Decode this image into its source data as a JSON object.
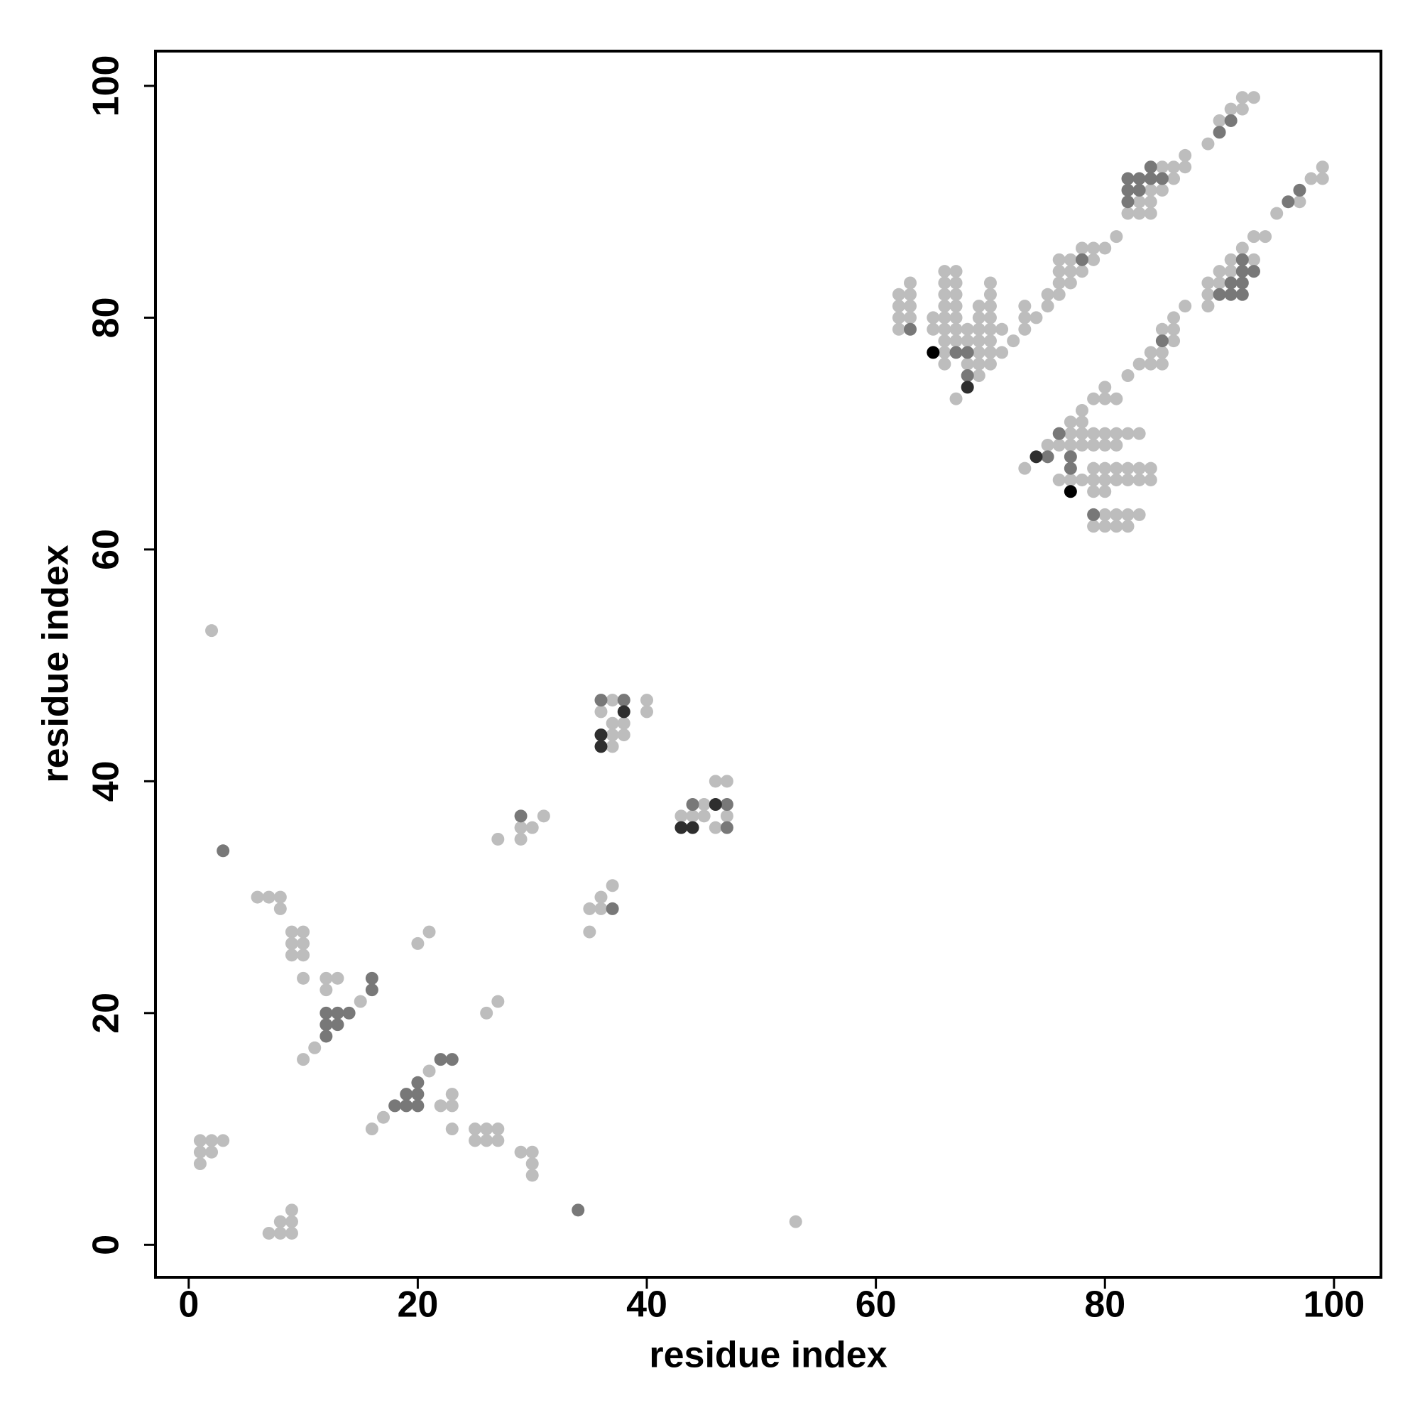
{
  "chart_data": {
    "type": "scatter",
    "xlabel": "residue index",
    "ylabel": "residue index",
    "xlim": [
      -2.9,
      104.1
    ],
    "ylim": [
      -2.8,
      103
    ],
    "xticks": [
      0,
      20,
      40,
      60,
      80,
      100
    ],
    "yticks": [
      0,
      20,
      40,
      60,
      80,
      100
    ],
    "series": [
      {
        "color": "#bdbdbd",
        "x": [
          1,
          1,
          2,
          1,
          2,
          3,
          2,
          6,
          7,
          8,
          8,
          9,
          10,
          9,
          10,
          9,
          10,
          10,
          12,
          13,
          12,
          15,
          11,
          10,
          7,
          8,
          9,
          8,
          9,
          9,
          16,
          17,
          21,
          22,
          23,
          23,
          23,
          25,
          26,
          27,
          25,
          26,
          27,
          29,
          30,
          30,
          30,
          53,
          20,
          21,
          26,
          27,
          27,
          29,
          30,
          29,
          31,
          35,
          35,
          36,
          36,
          37,
          37,
          36,
          37,
          38,
          37,
          38,
          37,
          40,
          40,
          43,
          44,
          45,
          45,
          46,
          47,
          46,
          47,
          62,
          62,
          62,
          62,
          63,
          63,
          63,
          63,
          65,
          65,
          66,
          66,
          66,
          66,
          66,
          66,
          66,
          66,
          66,
          67,
          67,
          67,
          67,
          67,
          67,
          67,
          67,
          68,
          68,
          68,
          69,
          69,
          69,
          69,
          69,
          69,
          69,
          70,
          70,
          70,
          70,
          70,
          70,
          70,
          70,
          71,
          71,
          72,
          73,
          73,
          73,
          74,
          75,
          75,
          76,
          76,
          76,
          76,
          77,
          77,
          77,
          78,
          78,
          79,
          79,
          80,
          81,
          82,
          83,
          83,
          84,
          84,
          84,
          85,
          85,
          86,
          86,
          87,
          87,
          89,
          90,
          91,
          92,
          92,
          93,
          73,
          75,
          76,
          76,
          77,
          77,
          77,
          77,
          78,
          78,
          78,
          78,
          78,
          79,
          79,
          79,
          79,
          79,
          79,
          79,
          80,
          80,
          80,
          80,
          80,
          80,
          80,
          80,
          80,
          81,
          81,
          81,
          81,
          81,
          81,
          81,
          82,
          82,
          82,
          82,
          82,
          82,
          83,
          83,
          83,
          83,
          83,
          84,
          84,
          84,
          84,
          85,
          85,
          85,
          86,
          86,
          86,
          87,
          89,
          89,
          89,
          90,
          90,
          91,
          91,
          92,
          93,
          93,
          94,
          95,
          97,
          98,
          99,
          99
        ],
        "y": [
          7,
          8,
          8,
          9,
          9,
          9,
          53,
          30,
          30,
          30,
          29,
          27,
          27,
          26,
          26,
          25,
          25,
          23,
          23,
          23,
          22,
          21,
          17,
          16,
          1,
          1,
          1,
          2,
          2,
          3,
          10,
          11,
          15,
          12,
          12,
          13,
          10,
          9,
          9,
          9,
          10,
          10,
          10,
          8,
          8,
          7,
          6,
          2,
          26,
          27,
          20,
          21,
          35,
          36,
          36,
          35,
          37,
          27,
          29,
          29,
          30,
          31,
          47,
          46,
          45,
          45,
          44,
          44,
          43,
          47,
          46,
          37,
          37,
          37,
          38,
          40,
          40,
          36,
          37,
          82,
          81,
          80,
          79,
          83,
          82,
          81,
          80,
          80,
          79,
          84,
          83,
          82,
          81,
          80,
          79,
          78,
          77,
          76,
          84,
          83,
          82,
          81,
          80,
          79,
          78,
          73,
          79,
          78,
          76,
          81,
          80,
          79,
          78,
          77,
          76,
          75,
          83,
          82,
          81,
          80,
          79,
          78,
          77,
          76,
          79,
          77,
          78,
          81,
          80,
          79,
          80,
          82,
          81,
          85,
          84,
          83,
          82,
          85,
          84,
          83,
          86,
          84,
          86,
          85,
          86,
          87,
          89,
          89,
          90,
          91,
          90,
          89,
          93,
          91,
          93,
          92,
          94,
          93,
          95,
          97,
          98,
          99,
          98,
          99,
          67,
          69,
          69,
          66,
          71,
          70,
          69,
          66,
          72,
          71,
          70,
          69,
          66,
          73,
          70,
          69,
          67,
          66,
          65,
          62,
          74,
          73,
          70,
          69,
          67,
          66,
          65,
          63,
          62,
          73,
          70,
          69,
          67,
          66,
          63,
          62,
          75,
          70,
          67,
          66,
          63,
          62,
          76,
          70,
          67,
          66,
          63,
          77,
          76,
          67,
          66,
          77,
          76,
          79,
          80,
          79,
          78,
          81,
          83,
          82,
          81,
          84,
          83,
          85,
          84,
          86,
          87,
          85,
          87,
          89,
          90,
          92,
          93,
          92
        ]
      },
      {
        "color": "#787878",
        "x": [
          3,
          16,
          16,
          12,
          13,
          14,
          12,
          13,
          12,
          18,
          19,
          20,
          19,
          20,
          20,
          22,
          23,
          34,
          29,
          37,
          36,
          38,
          44,
          47,
          47,
          63,
          67,
          68,
          68,
          78,
          82,
          82,
          82,
          83,
          83,
          84,
          84,
          85,
          90,
          91,
          75,
          76,
          77,
          77,
          79,
          85,
          90,
          91,
          91,
          92,
          92,
          92,
          92,
          93,
          96,
          97
        ],
        "y": [
          34,
          23,
          22,
          20,
          20,
          20,
          19,
          19,
          18,
          12,
          12,
          12,
          13,
          13,
          14,
          16,
          16,
          3,
          37,
          29,
          47,
          47,
          38,
          38,
          36,
          79,
          77,
          77,
          75,
          85,
          90,
          91,
          92,
          92,
          91,
          93,
          92,
          92,
          96,
          97,
          68,
          70,
          68,
          67,
          63,
          78,
          82,
          83,
          82,
          85,
          84,
          83,
          82,
          84,
          90,
          91
        ]
      },
      {
        "color": "#2e2e2e",
        "x": [
          38,
          36,
          36,
          43,
          44,
          46,
          68,
          74
        ],
        "y": [
          46,
          44,
          43,
          36,
          36,
          38,
          74,
          68
        ]
      },
      {
        "color": "#000000",
        "x": [
          65,
          77
        ],
        "y": [
          77,
          65
        ]
      }
    ]
  }
}
